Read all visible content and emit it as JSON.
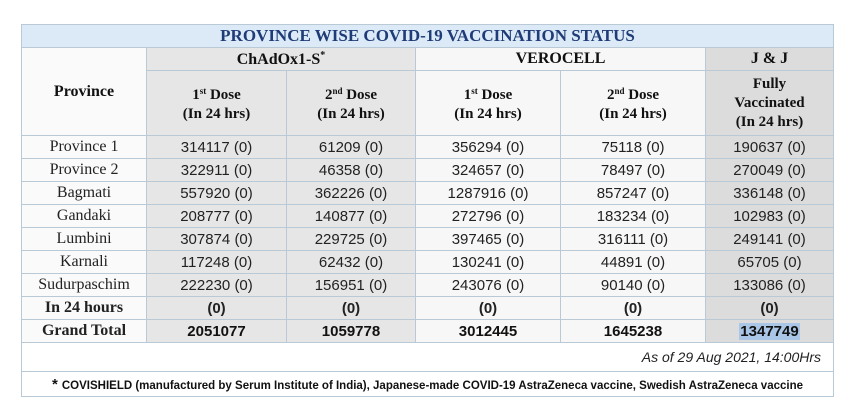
{
  "title": "PROVINCE WISE COVID-19 VACCINATION STATUS",
  "groups": {
    "chadox": "ChAdOx1-S",
    "chadox_mark": "*",
    "verocell": "VEROCELL",
    "jj": "J & J"
  },
  "headers": {
    "province": "Province",
    "dose1_a": "1",
    "dose1_sup": "st",
    "dose1_b": " Dose",
    "dose2_a": "2",
    "dose2_sup": "nd",
    "dose2_b": " Dose",
    "in24": "(In 24 hrs)",
    "fully_l1": "Fully",
    "fully_l2": "Vaccinated",
    "fully_l3": "(In 24 hrs)"
  },
  "rows": [
    {
      "province": "Province 1",
      "c1": "314117 (0)",
      "c2": "61209 (0)",
      "v1": "356294 (0)",
      "v2": "75118 (0)",
      "jj": "190637 (0)"
    },
    {
      "province": "Province 2",
      "c1": "322911 (0)",
      "c2": "46358 (0)",
      "v1": "324657 (0)",
      "v2": "78497 (0)",
      "jj": "270049 (0)"
    },
    {
      "province": "Bagmati",
      "c1": "557920 (0)",
      "c2": "362226 (0)",
      "v1": "1287916 (0)",
      "v2": "857247 (0)",
      "jj": "336148 (0)"
    },
    {
      "province": "Gandaki",
      "c1": "208777 (0)",
      "c2": "140877 (0)",
      "v1": "272796 (0)",
      "v2": "183234 (0)",
      "jj": "102983 (0)"
    },
    {
      "province": "Lumbini",
      "c1": "307874 (0)",
      "c2": "229725 (0)",
      "v1": "397465 (0)",
      "v2": "316111 (0)",
      "jj": "249141 (0)"
    },
    {
      "province": "Karnali",
      "c1": "117248 (0)",
      "c2": "62432 (0)",
      "v1": "130241 (0)",
      "v2": "44891 (0)",
      "jj": "65705 (0)"
    },
    {
      "province": "Sudurpaschim",
      "c1": "222230 (0)",
      "c2": "156951 (0)",
      "v1": "243076 (0)",
      "v2": "90140 (0)",
      "jj": "133086 (0)"
    }
  ],
  "in24_row": {
    "label": "In 24 hours",
    "c1": "(0)",
    "c2": "(0)",
    "v1": "(0)",
    "v2": "(0)",
    "jj": "(0)"
  },
  "total_row": {
    "label": "Grand Total",
    "c1": "2051077",
    "c2": "1059778",
    "v1": "3012445",
    "v2": "1645238",
    "jj": "1347749"
  },
  "as_of": "As of 29 Aug 2021,  14:00Hrs",
  "footnote_mark": "*",
  "footnote": "COVISHIELD (manufactured by Serum Institute of India), Japanese-made COVID-19 AstraZeneca vaccine, Swedish AstraZeneca vaccine"
}
